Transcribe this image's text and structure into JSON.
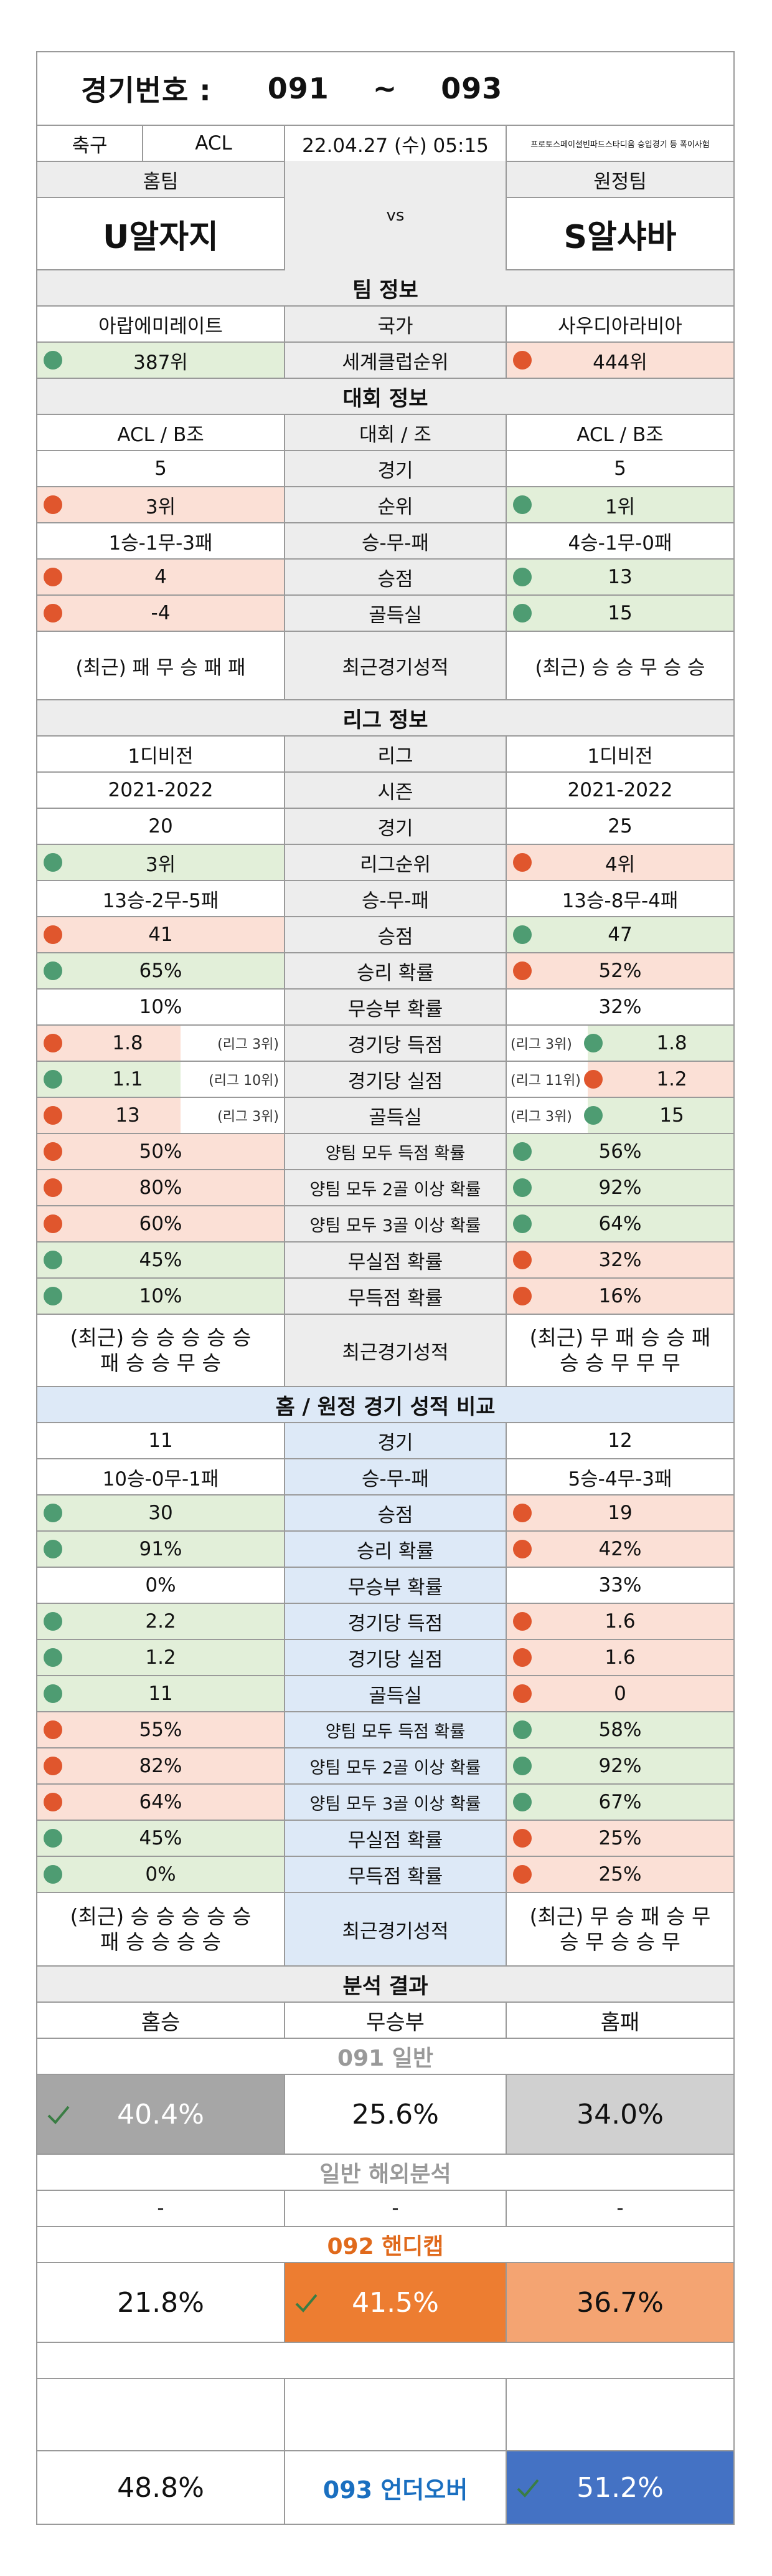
{
  "header": {
    "label": "경기번호 :",
    "from": "091",
    "sep": "~",
    "to": "093"
  },
  "info": {
    "sport": "축구",
    "league": "ACL",
    "datetime": "22.04.27 (수) 05:15",
    "notice": "프로토스페이셜빈파드스타디움 승입경기 등 폭이사험"
  },
  "teams": {
    "home_label": "홈팀",
    "away_label": "원정팀",
    "vs": "vs",
    "home": "U알자지",
    "away": "S알샤바"
  },
  "sections": {
    "team": "팀 정보",
    "tourney": "대회 정보",
    "league": "리그 정보",
    "ha": "홈 / 원정 경기 성적 비교",
    "analysis": "분석 결과"
  },
  "team_rows": [
    {
      "h": "아랍에미레이트",
      "m": "국가",
      "a": "사우디아라비아"
    },
    {
      "h": "387위",
      "m": "세계클럽순위",
      "a": "444위"
    }
  ],
  "tourney_rows": [
    {
      "h": "ACL / B조",
      "m": "대회 / 조",
      "a": "ACL / B조"
    },
    {
      "h": "5",
      "m": "경기",
      "a": "5"
    },
    {
      "h": "3위",
      "m": "순위",
      "a": "1위"
    },
    {
      "h": "1승-1무-3패",
      "m": "승-무-패",
      "a": "4승-1무-0패"
    },
    {
      "h": "4",
      "m": "승점",
      "a": "13"
    },
    {
      "h": "-4",
      "m": "골득실",
      "a": "15"
    },
    {
      "h": "(최근) 패 무 승 패 패",
      "m": "최근경기성적",
      "a": "(최근) 승 승 무 승 승"
    }
  ],
  "league_rows": [
    {
      "h": "1디비전",
      "m": "리그",
      "a": "1디비전"
    },
    {
      "h": "2021-2022",
      "m": "시즌",
      "a": "2021-2022"
    },
    {
      "h": "20",
      "m": "경기",
      "a": "25"
    },
    {
      "h": "3위",
      "m": "리그순위",
      "a": "4위"
    },
    {
      "h": "13승-2무-5패",
      "m": "승-무-패",
      "a": "13승-8무-4패"
    },
    {
      "h": "41",
      "m": "승점",
      "a": "47"
    },
    {
      "h": "65%",
      "m": "승리 확률",
      "a": "52%"
    },
    {
      "h": "10%",
      "m": "무승부 확률",
      "a": "32%"
    },
    {
      "h": "1.8",
      "hr": "(리그 3위)",
      "m": "경기당 득점",
      "a": "1.8",
      "ar": "(리그 3위)"
    },
    {
      "h": "1.1",
      "hr": "(리그 10위)",
      "m": "경기당 실점",
      "a": "1.2",
      "ar": "(리그 11위)"
    },
    {
      "h": "13",
      "hr": "(리그 3위)",
      "m": "골득실",
      "a": "15",
      "ar": "(리그 3위)"
    },
    {
      "h": "50%",
      "m": "양팀 모두 득점 확률",
      "a": "56%"
    },
    {
      "h": "80%",
      "m": "양팀 모두 2골 이상 확률",
      "a": "92%"
    },
    {
      "h": "60%",
      "m": "양팀 모두 3골 이상 확률",
      "a": "64%"
    },
    {
      "h": "45%",
      "m": "무실점 확률",
      "a": "32%"
    },
    {
      "h": "10%",
      "m": "무득점 확률",
      "a": "16%"
    },
    {
      "h1": "(최근) 승 승 승 승 승",
      "h2": "패 승 승 무 승",
      "m": "최근경기성적",
      "a1": "(최근) 무 패 승 승 패",
      "a2": "승 승 무 무 무"
    }
  ],
  "ha_rows": [
    {
      "h": "11",
      "m": "경기",
      "a": "12"
    },
    {
      "h": "10승-0무-1패",
      "m": "승-무-패",
      "a": "5승-4무-3패"
    },
    {
      "h": "30",
      "m": "승점",
      "a": "19"
    },
    {
      "h": "91%",
      "m": "승리 확률",
      "a": "42%"
    },
    {
      "h": "0%",
      "m": "무승부 확률",
      "a": "33%"
    },
    {
      "h": "2.2",
      "m": "경기당 득점",
      "a": "1.6"
    },
    {
      "h": "1.2",
      "m": "경기당 실점",
      "a": "1.6"
    },
    {
      "h": "11",
      "m": "골득실",
      "a": "0"
    },
    {
      "h": "55%",
      "m": "양팀 모두 득점 확률",
      "a": "58%"
    },
    {
      "h": "82%",
      "m": "양팀 모두 2골 이상 확률",
      "a": "92%"
    },
    {
      "h": "64%",
      "m": "양팀 모두 3골 이상 확률",
      "a": "67%"
    },
    {
      "h": "45%",
      "m": "무실점 확률",
      "a": "25%"
    },
    {
      "h": "0%",
      "m": "무득점 확률",
      "a": "25%"
    },
    {
      "h1": "(최근) 승 승 승 승 승",
      "h2": "패 승 승 승 승",
      "m": "최근경기성적",
      "a1": "(최근) 무 승 패 승 무",
      "a2": "승 무 승 승 무"
    }
  ],
  "analysis": {
    "home_win": "홈승",
    "draw": "무승부",
    "home_loss": "홈패",
    "g091": "091 일반",
    "g091_h": "40.4%",
    "g091_d": "25.6%",
    "g091_a": "34.0%",
    "overseas": "일반 해외분석",
    "ov_h": "-",
    "ov_d": "-",
    "ov_a": "-",
    "g092": "092 핸디캡",
    "g092_h": "21.8%",
    "g092_d": "41.5%",
    "g092_a": "36.7%",
    "g093_h": "48.8%",
    "g093": "093 언더오버",
    "g093_a": "51.2%"
  },
  "colors": {
    "green": "#e2efd9",
    "red": "#fbe0d6",
    "dot_green": "#4e9c72",
    "dot_red": "#e0562d",
    "gray_sel": "#a6a6a6",
    "orange": "#ed7d31",
    "orange_light": "#f4a472",
    "blue_sel": "#4472c4"
  }
}
